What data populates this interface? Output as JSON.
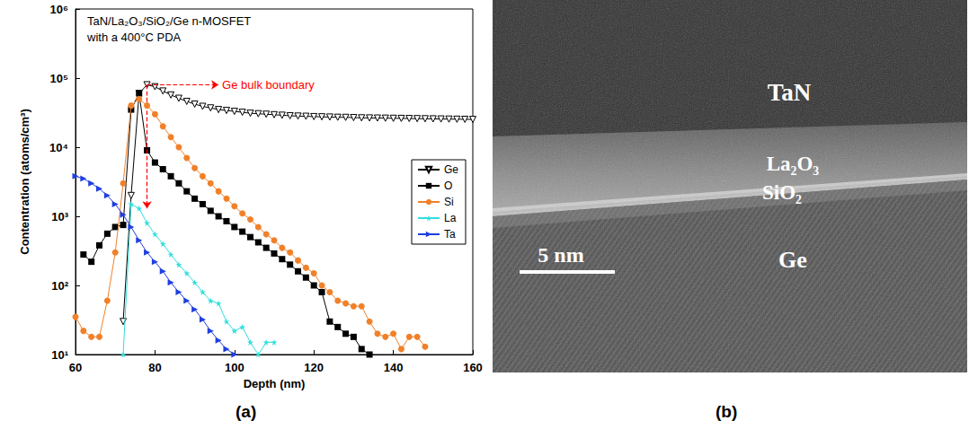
{
  "chart_data": {
    "type": "line",
    "title": "TaN/La₂O₃/SiO₂/Ge n-MOSFET",
    "subtitle": "with a 400°C PDA",
    "x_label": "Depth (nm)",
    "y_label": "Contentration (atoms/cm³)",
    "xlim": [
      60,
      160
    ],
    "xticks": [
      60,
      80,
      100,
      120,
      140,
      160
    ],
    "ylim": [
      10,
      1000000
    ],
    "yticks": [
      {
        "value": 10,
        "label": "10¹"
      },
      {
        "value": 100,
        "label": "10²"
      },
      {
        "value": 1000,
        "label": "10³"
      },
      {
        "value": 10000,
        "label": "10⁴"
      },
      {
        "value": 100000,
        "label": "10⁵"
      },
      {
        "value": 1000000,
        "label": "10⁶"
      }
    ],
    "log": "y",
    "grid": false,
    "legend": "right",
    "annotations": [
      {
        "text": "Ge bulk boundary",
        "color": "#ff0000",
        "x": 78,
        "y": 80000,
        "x_end": 96,
        "y_end": 1300
      }
    ],
    "series": [
      {
        "name": "Ge",
        "color": "#000000",
        "marker": "open-triangle-down",
        "x": [
          72,
          74,
          76,
          78,
          80,
          82,
          84,
          86,
          88,
          90,
          92,
          94,
          96,
          98,
          100,
          102,
          104,
          106,
          108,
          110,
          112,
          114,
          116,
          118,
          120,
          122,
          124,
          126,
          128,
          130,
          132,
          134,
          136,
          138,
          140,
          142,
          144,
          146,
          148,
          150,
          152,
          154,
          156,
          158,
          160
        ],
        "values": [
          30,
          2000,
          60000,
          80000,
          75000,
          65000,
          57000,
          51000,
          46000,
          42000,
          39000,
          37000,
          35000,
          34000,
          33000,
          32000,
          31000,
          30500,
          30000,
          29500,
          29000,
          28500,
          28200,
          28000,
          27700,
          27500,
          27300,
          27100,
          27000,
          26800,
          26600,
          26500,
          26400,
          26300,
          26200,
          26100,
          26000,
          25900,
          25800,
          25700,
          25600,
          25500,
          25400,
          25300,
          25200
        ]
      },
      {
        "name": "O",
        "color": "#000000",
        "marker": "square",
        "x": [
          62,
          64,
          66,
          68,
          70,
          72,
          74,
          76,
          78,
          80,
          82,
          84,
          86,
          88,
          90,
          92,
          94,
          96,
          98,
          100,
          102,
          104,
          106,
          108,
          110,
          112,
          114,
          116,
          118,
          120,
          122,
          124,
          126,
          128,
          130,
          132,
          134
        ],
        "values": [
          280,
          220,
          380,
          560,
          700,
          750,
          35000,
          60000,
          9000,
          6000,
          4800,
          3800,
          3000,
          2300,
          1800,
          1500,
          1200,
          1000,
          850,
          700,
          600,
          500,
          420,
          350,
          290,
          240,
          200,
          160,
          130,
          100,
          80,
          30,
          25,
          20,
          18,
          12,
          10
        ]
      },
      {
        "name": "Si",
        "color": "#f0812a",
        "marker": "circle",
        "x": [
          60,
          62,
          64,
          66,
          68,
          70,
          72,
          74,
          76,
          78,
          80,
          82,
          84,
          86,
          88,
          90,
          92,
          94,
          96,
          98,
          100,
          102,
          104,
          106,
          108,
          110,
          112,
          114,
          116,
          118,
          120,
          122,
          124,
          126,
          128,
          130,
          132,
          134,
          136,
          138,
          140,
          142,
          144,
          146,
          148
        ],
        "values": [
          35,
          22,
          18,
          18,
          60,
          300,
          3000,
          40000,
          50000,
          40000,
          30000,
          20000,
          14000,
          10000,
          7000,
          5000,
          3800,
          3000,
          2300,
          1800,
          1400,
          1100,
          900,
          700,
          550,
          450,
          350,
          300,
          230,
          180,
          150,
          100,
          80,
          60,
          55,
          50,
          50,
          30,
          20,
          18,
          20,
          12,
          18,
          18,
          13
        ]
      },
      {
        "name": "La",
        "color": "#33dddd",
        "marker": "star",
        "x": [
          72,
          74,
          76,
          78,
          80,
          82,
          84,
          86,
          88,
          90,
          92,
          94,
          96,
          98,
          100,
          102,
          104,
          106,
          108,
          110
        ],
        "values": [
          10,
          1500,
          1300,
          800,
          550,
          400,
          280,
          200,
          150,
          110,
          80,
          60,
          55,
          30,
          22,
          25,
          15,
          10,
          15,
          15
        ]
      },
      {
        "name": "Ta",
        "color": "#1f3fe0",
        "marker": "triangle-right",
        "x": [
          60,
          62,
          64,
          66,
          68,
          70,
          72,
          74,
          76,
          78,
          80,
          82,
          84,
          86,
          88,
          90,
          92,
          94,
          96,
          98,
          100
        ],
        "values": [
          3800,
          3500,
          3000,
          2500,
          2000,
          1500,
          1050,
          700,
          450,
          300,
          220,
          160,
          110,
          80,
          60,
          45,
          32,
          22,
          16,
          12,
          10
        ]
      }
    ]
  },
  "panel_labels": [
    "(a)",
    "(b)"
  ],
  "image": {
    "layers": [
      "TaN",
      "La₂O₃",
      "SiO₂",
      "Ge"
    ],
    "scale_bar": "5 nm"
  }
}
